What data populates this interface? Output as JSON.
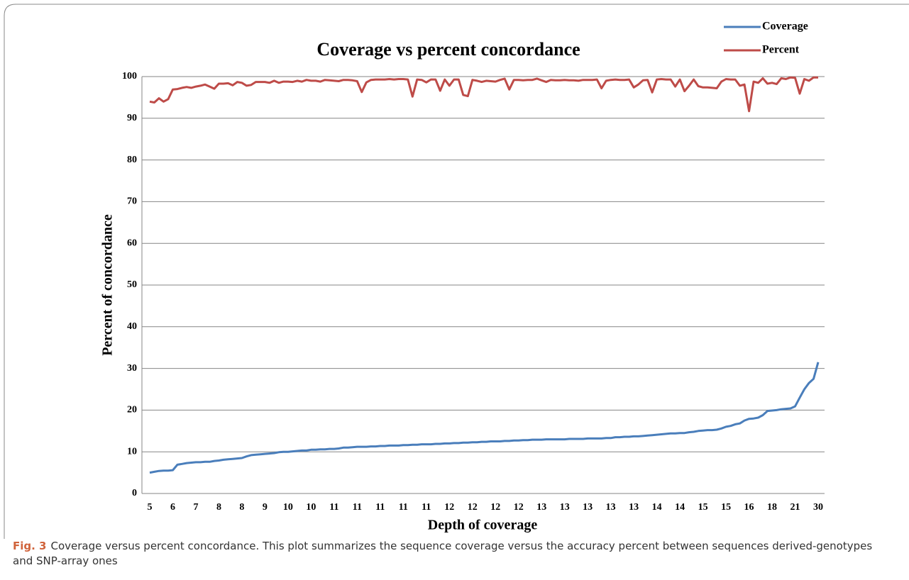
{
  "chart_data": {
    "type": "line",
    "title": "Coverage vs percent concordance",
    "x_label": "Depth of coverage",
    "y_label": "Percent of concordance",
    "figure_label": "Fig. 3",
    "caption": "Coverage versus percent concordance. This plot summarizes the sequence coverage versus the accuracy percent between sequences derived-genotypes and SNP-array ones",
    "categories": [
      5,
      null,
      null,
      null,
      null,
      6,
      null,
      null,
      null,
      null,
      7,
      null,
      null,
      null,
      null,
      8,
      null,
      null,
      null,
      null,
      8,
      null,
      null,
      null,
      null,
      9,
      null,
      null,
      null,
      null,
      10,
      null,
      null,
      null,
      null,
      10,
      null,
      null,
      null,
      null,
      11,
      null,
      null,
      null,
      null,
      11,
      null,
      null,
      null,
      null,
      11,
      null,
      null,
      null,
      null,
      11,
      null,
      null,
      null,
      null,
      11,
      null,
      null,
      null,
      null,
      12,
      null,
      null,
      null,
      null,
      12,
      null,
      null,
      null,
      null,
      12,
      null,
      null,
      null,
      null,
      12,
      null,
      null,
      null,
      null,
      13,
      null,
      null,
      null,
      null,
      13,
      null,
      null,
      null,
      null,
      13,
      null,
      null,
      null,
      null,
      13,
      null,
      null,
      null,
      null,
      13,
      null,
      null,
      null,
      null,
      14,
      null,
      null,
      null,
      null,
      14,
      null,
      null,
      null,
      null,
      15,
      null,
      null,
      null,
      null,
      15,
      null,
      null,
      null,
      null,
      16,
      null,
      null,
      null,
      null,
      18,
      null,
      null,
      null,
      null,
      21,
      null,
      null,
      null,
      null,
      30
    ],
    "series": [
      {
        "name": "Coverage",
        "color": "#4a7ebb",
        "values": [
          5.0,
          5.2,
          5.4,
          5.5,
          5.5,
          5.6,
          6.9,
          7.1,
          7.3,
          7.4,
          7.5,
          7.5,
          7.6,
          7.6,
          7.8,
          7.9,
          8.1,
          8.2,
          8.3,
          8.4,
          8.5,
          8.9,
          9.2,
          9.3,
          9.4,
          9.5,
          9.6,
          9.7,
          9.9,
          10.0,
          10.0,
          10.1,
          10.2,
          10.3,
          10.3,
          10.5,
          10.5,
          10.6,
          10.6,
          10.7,
          10.7,
          10.8,
          11.0,
          11.0,
          11.1,
          11.2,
          11.2,
          11.2,
          11.3,
          11.3,
          11.4,
          11.4,
          11.5,
          11.5,
          11.5,
          11.6,
          11.6,
          11.7,
          11.7,
          11.8,
          11.8,
          11.8,
          11.9,
          11.9,
          12.0,
          12.0,
          12.1,
          12.1,
          12.2,
          12.2,
          12.3,
          12.3,
          12.4,
          12.4,
          12.5,
          12.5,
          12.5,
          12.6,
          12.6,
          12.7,
          12.7,
          12.8,
          12.8,
          12.9,
          12.9,
          12.9,
          13.0,
          13.0,
          13.0,
          13.0,
          13.0,
          13.1,
          13.1,
          13.1,
          13.1,
          13.2,
          13.2,
          13.2,
          13.2,
          13.3,
          13.3,
          13.5,
          13.5,
          13.6,
          13.6,
          13.7,
          13.7,
          13.8,
          13.9,
          14.0,
          14.1,
          14.2,
          14.3,
          14.4,
          14.4,
          14.5,
          14.5,
          14.7,
          14.8,
          15.0,
          15.1,
          15.2,
          15.2,
          15.3,
          15.6,
          16.0,
          16.2,
          16.6,
          16.8,
          17.5,
          17.9,
          18.0,
          18.2,
          18.8,
          19.8,
          19.9,
          20.0,
          20.2,
          20.3,
          20.4,
          20.9,
          23.0,
          25.0,
          26.5,
          27.5,
          31.5
        ]
      },
      {
        "name": "Percent",
        "color": "#be4b48",
        "values": [
          94.0,
          93.8,
          94.8,
          94.0,
          94.6,
          96.9,
          97.0,
          97.3,
          97.5,
          97.3,
          97.6,
          97.8,
          98.1,
          97.6,
          97.1,
          98.3,
          98.3,
          98.4,
          97.9,
          98.7,
          98.5,
          97.8,
          98.0,
          98.7,
          98.7,
          98.7,
          98.5,
          99.0,
          98.5,
          98.8,
          98.8,
          98.7,
          99.0,
          98.8,
          99.2,
          99.0,
          99.0,
          98.8,
          99.2,
          99.1,
          99.0,
          98.9,
          99.2,
          99.2,
          99.1,
          98.9,
          96.3,
          98.6,
          99.2,
          99.3,
          99.3,
          99.3,
          99.4,
          99.3,
          99.4,
          99.4,
          99.3,
          95.2,
          99.3,
          99.2,
          98.6,
          99.3,
          99.3,
          96.6,
          99.3,
          97.8,
          99.3,
          99.3,
          95.6,
          95.3,
          99.2,
          99.0,
          98.7,
          99.0,
          98.9,
          98.8,
          99.2,
          99.5,
          96.9,
          99.2,
          99.2,
          99.1,
          99.2,
          99.2,
          99.5,
          99.1,
          98.7,
          99.2,
          99.1,
          99.1,
          99.2,
          99.1,
          99.1,
          99.0,
          99.2,
          99.2,
          99.2,
          99.3,
          97.2,
          99.0,
          99.2,
          99.3,
          99.2,
          99.2,
          99.3,
          97.4,
          98.1,
          99.1,
          99.2,
          96.2,
          99.3,
          99.4,
          99.3,
          99.3,
          97.6,
          99.3,
          96.5,
          97.8,
          99.3,
          97.7,
          97.4,
          97.4,
          97.3,
          97.2,
          98.8,
          99.4,
          99.3,
          99.3,
          97.8,
          98.1,
          91.7,
          98.8,
          98.5,
          99.6,
          98.3,
          98.5,
          98.2,
          99.6,
          99.4,
          99.8,
          99.7,
          95.9,
          99.4,
          99.0,
          99.8,
          99.8
        ]
      }
    ],
    "ylim": [
      0,
      100
    ],
    "yticks": [
      0,
      10,
      20,
      30,
      40,
      50,
      60,
      70,
      80,
      90,
      100
    ],
    "grid": true,
    "legend": "top-right"
  }
}
